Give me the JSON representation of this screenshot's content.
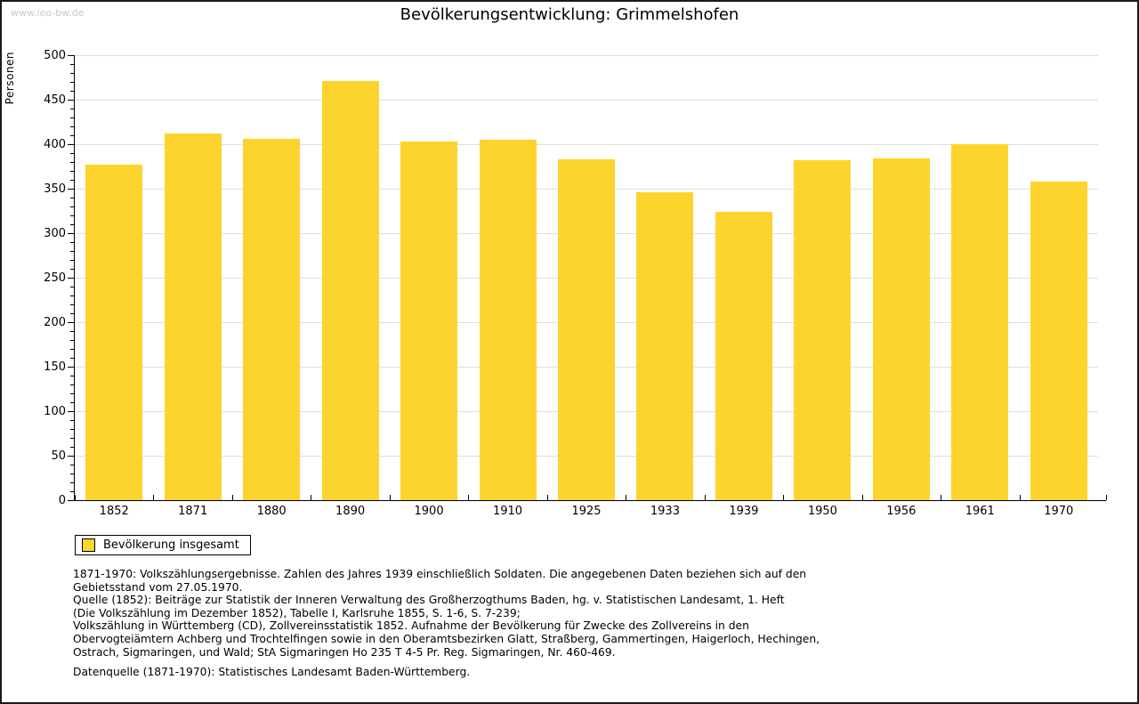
{
  "page": {
    "watermark": "www.leo-bw.de",
    "title": "Bevölkerungsentwicklung: Grimmelshofen"
  },
  "chart_data": {
    "type": "bar",
    "title": "Bevölkerungsentwicklung: Grimmelshofen",
    "xlabel": "",
    "ylabel": "Personen",
    "categories": [
      "1852",
      "1871",
      "1880",
      "1890",
      "1900",
      "1910",
      "1925",
      "1933",
      "1939",
      "1950",
      "1956",
      "1961",
      "1970"
    ],
    "values": [
      377,
      412,
      406,
      471,
      403,
      405,
      383,
      346,
      324,
      382,
      384,
      400,
      358
    ],
    "ylim": [
      0,
      500
    ],
    "ytick_step": 50,
    "minor_tick_step": 10,
    "grid": true,
    "bar_color": "#FCD42D",
    "axis_color": "#000000",
    "grid_color": "#dedede",
    "legend_position": "bottom-left",
    "legend": [
      {
        "label": "Bevölkerung insgesamt",
        "color": "#FCD42D"
      }
    ]
  },
  "notes": {
    "lines": [
      "1871-1970: Volkszählungsergebnisse. Zahlen des Jahres 1939 einschließlich Soldaten. Die angegebenen Daten beziehen sich auf den",
      "Gebietsstand vom 27.05.1970.",
      "Quelle (1852): Beiträge zur Statistik der Inneren Verwaltung des Großherzogthums Baden, hg. v. Statistischen Landesamt, 1. Heft",
      "(Die Volkszählung im Dezember 1852), Tabelle I, Karlsruhe 1855, S. 1-6, S. 7-239;",
      "Volkszählung in Württemberg (CD), Zollvereinsstatistik 1852. Aufnahme der Bevölkerung für Zwecke des Zollvereins in den",
      "Obervogteiämtern Achberg und Trochtelfingen sowie in den Oberamtsbezirken Glatt, Straßberg, Gammertingen, Haigerloch, Hechingen,",
      "Ostrach, Sigmaringen, und Wald; StA Sigmaringen Ho 235 T 4-5 Pr. Reg. Sigmaringen, Nr. 460-469."
    ],
    "datasource": "Datenquelle (1871-1970): Statistisches Landesamt Baden-Württemberg."
  }
}
